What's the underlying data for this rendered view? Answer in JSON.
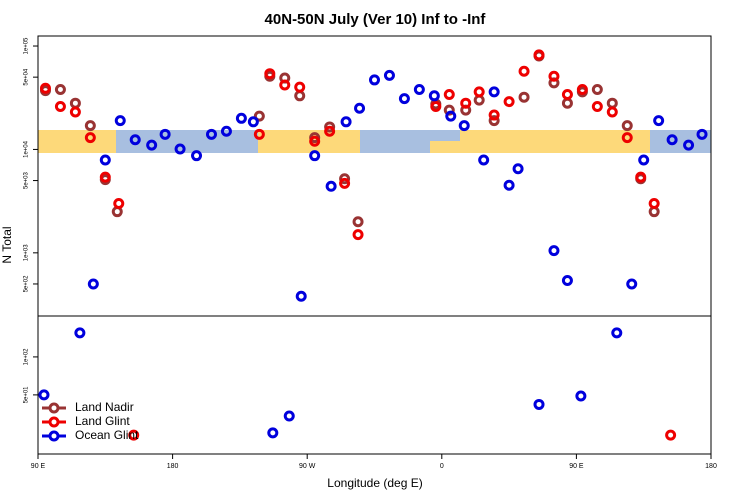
{
  "chart_data": {
    "type": "scatter",
    "title": "40N-50N July (Ver 10)   Inf to -Inf",
    "xlabel": "Longitude (deg E)",
    "ylabel": "N Total",
    "log_y": true,
    "legend": "lower left",
    "xlim": [
      90,
      540
    ],
    "xticks": [
      {
        "value": 90,
        "label": "90 E"
      },
      {
        "value": 180,
        "label": "180"
      },
      {
        "value": 270,
        "label": "90 W"
      },
      {
        "value": 360,
        "label": "0"
      },
      {
        "value": 450,
        "label": "90 E"
      },
      {
        "value": 540,
        "label": "180"
      }
    ],
    "ylim": [
      245,
      125000
    ],
    "yticks": [
      {
        "value": 100000,
        "label": "1e+05"
      },
      {
        "value": 50000,
        "label": "5e+04"
      },
      {
        "value": 10000,
        "label": "1e+04"
      },
      {
        "value": 5000,
        "label": "5e+03"
      },
      {
        "value": 1000,
        "label": "1e+03"
      },
      {
        "value": 500,
        "label": "5e+02"
      }
    ],
    "y2lim": [
      17,
      211
    ],
    "y2ticks": [
      {
        "value": 100,
        "label": "1e+02"
      },
      {
        "value": 50,
        "label": "5e+01"
      }
    ],
    "series": [
      {
        "name": "Land Nadir",
        "color": "#993333",
        "x": [
          95,
          105,
          115,
          125,
          135,
          143,
          238,
          245,
          255,
          265,
          275,
          285,
          295,
          304,
          356,
          365,
          376,
          385,
          395,
          415,
          425,
          435,
          444,
          454,
          464,
          474,
          484,
          493,
          502
        ],
        "values": [
          37000,
          38000,
          28000,
          17000,
          5100,
          2500,
          21000,
          51000,
          49000,
          33000,
          13000,
          16500,
          5200,
          2000,
          27500,
          24000,
          24000,
          30000,
          19000,
          32000,
          80000,
          44000,
          28000,
          36000,
          38000,
          28000,
          17000,
          5200,
          2500
        ]
      },
      {
        "name": "Land Glint",
        "color": "#ee0000",
        "x": [
          95,
          105,
          115,
          125,
          135,
          144,
          238,
          245,
          255,
          265,
          275,
          285,
          295,
          304,
          356,
          365,
          376,
          385,
          395,
          405,
          415,
          425,
          435,
          444,
          454,
          464,
          474,
          484,
          493,
          502
        ],
        "values": [
          39000,
          26000,
          23000,
          13000,
          5400,
          3000,
          14000,
          54000,
          42000,
          40000,
          12000,
          15000,
          4700,
          1500,
          26000,
          34000,
          28000,
          36000,
          21500,
          29000,
          57000,
          82000,
          51000,
          34000,
          38000,
          26000,
          23000,
          13000,
          5400,
          3000
        ],
        "y2_x": [
          154,
          513
        ],
        "y2_values": [
          24,
          24
        ]
      },
      {
        "name": "Ocean Glint",
        "color": "#0000dd",
        "x": [
          127,
          135,
          145,
          155,
          166,
          175,
          185,
          196,
          206,
          216,
          226,
          234,
          266,
          275,
          286,
          296,
          305,
          315,
          325,
          335,
          345,
          355,
          366,
          375,
          388,
          395,
          405,
          411,
          435,
          444,
          487,
          495,
          505,
          514,
          525,
          534
        ],
        "values": [
          500,
          7900,
          19000,
          12400,
          11000,
          14000,
          10100,
          8700,
          14000,
          15000,
          20000,
          18500,
          380,
          8700,
          4400,
          18500,
          25000,
          47000,
          52000,
          31000,
          38000,
          33000,
          21000,
          17000,
          7900,
          36000,
          4500,
          6500,
          1050,
          540,
          500,
          7900,
          19000,
          12400,
          11000,
          14000
        ],
        "y2_x": [
          94,
          118,
          247,
          258,
          425,
          453,
          477
        ],
        "y2_values": [
          50,
          155,
          25,
          34,
          42,
          49,
          155
        ]
      }
    ]
  }
}
